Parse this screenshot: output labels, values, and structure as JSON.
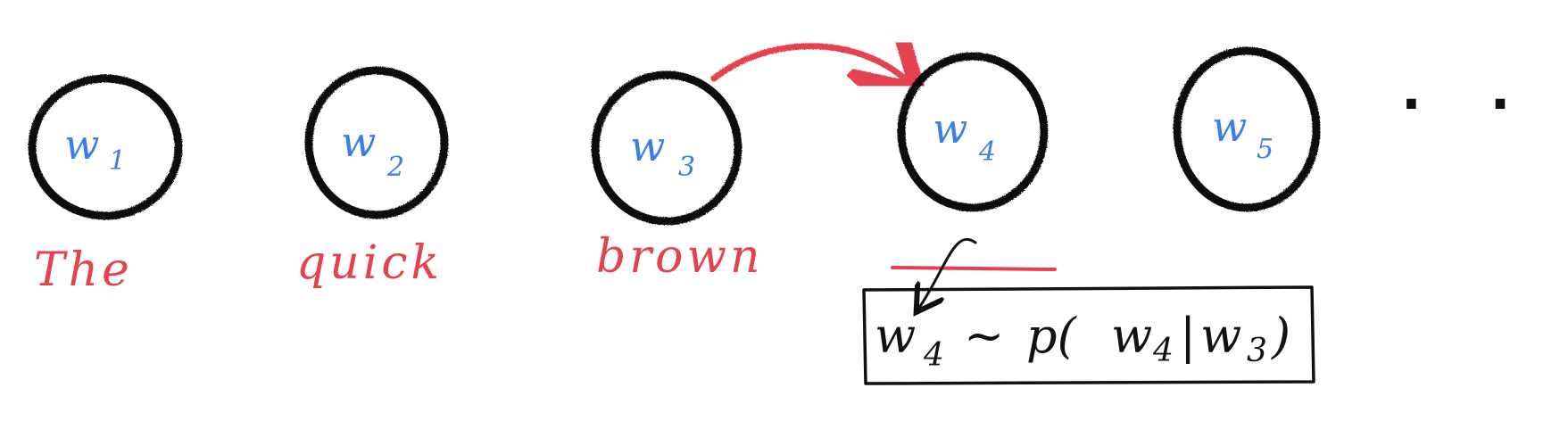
{
  "nodes": [
    {
      "base": "w",
      "sub": "1",
      "word": "The"
    },
    {
      "base": "w",
      "sub": "2",
      "word": "quick"
    },
    {
      "base": "w",
      "sub": "3",
      "word": "brown"
    },
    {
      "base": "w",
      "sub": "4",
      "word": ""
    },
    {
      "base": "w",
      "sub": "5",
      "word": ""
    }
  ],
  "ellipsis": ". . .",
  "formula": {
    "lhs_base": "w",
    "lhs_sub": "4",
    "tilde": "~",
    "p_open": "p(",
    "arg_base": "w",
    "arg_sub": "4",
    "bar": "|",
    "cond_base": "w",
    "cond_sub": "3",
    "close": ")"
  },
  "colors": {
    "node_stroke": "#111111",
    "node_label": "#3b7de9",
    "word": "#e5424f",
    "arrow": "#e5424f",
    "formula": "#111111"
  }
}
